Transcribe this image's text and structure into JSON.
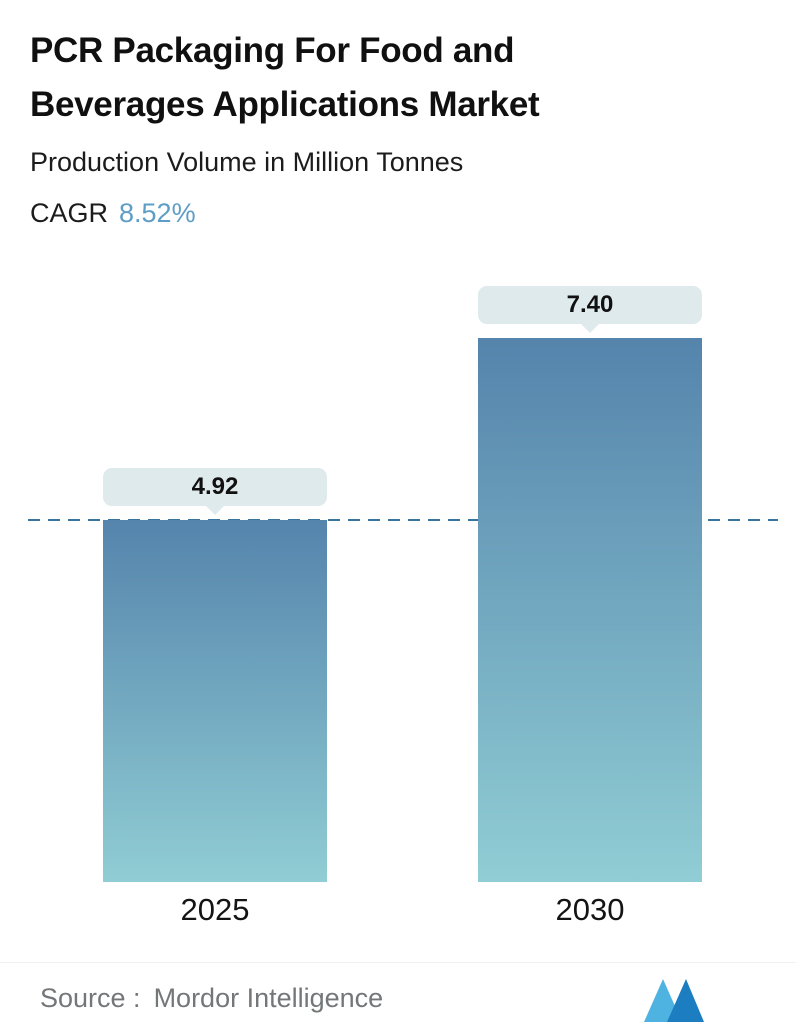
{
  "header": {
    "title_line1": "PCR Packaging For Food and",
    "title_line2": "Beverages Applications Market",
    "subtitle": "Production Volume in Million Tonnes",
    "cagr_label": "CAGR",
    "cagr_value": "8.52%"
  },
  "chart_data": {
    "type": "bar",
    "title": "PCR Packaging For Food and Beverages Applications Market",
    "subtitle": "Production Volume in Million Tonnes",
    "cagr_percent": 8.52,
    "categories": [
      "2025",
      "2030"
    ],
    "values": [
      4.92,
      7.4
    ],
    "value_labels": [
      "4.92",
      "7.40"
    ],
    "unit": "Million Tonnes",
    "ylim": [
      0,
      7.4
    ],
    "grid": false,
    "legend": "none",
    "reference_line": {
      "value": 4.92,
      "style": "dashed"
    },
    "colors": {
      "bar_gradient_top": "#5584ac",
      "bar_gradient_bottom": "#90cdd4",
      "dashed_line": "#38749e",
      "value_pill_bg": "#dfeaed",
      "value_text": "#111111"
    }
  },
  "footer": {
    "source_label": "Source :",
    "source_value": "Mordor Intelligence",
    "logo": "mordor-intelligence-logo"
  },
  "colors": {
    "background": "#ffffff",
    "title_text": "#101010",
    "subtitle_text": "#1c1c1c",
    "cagr_value_text": "#5e9dc6",
    "axis_label_text": "#141414",
    "source_text": "#737779"
  }
}
